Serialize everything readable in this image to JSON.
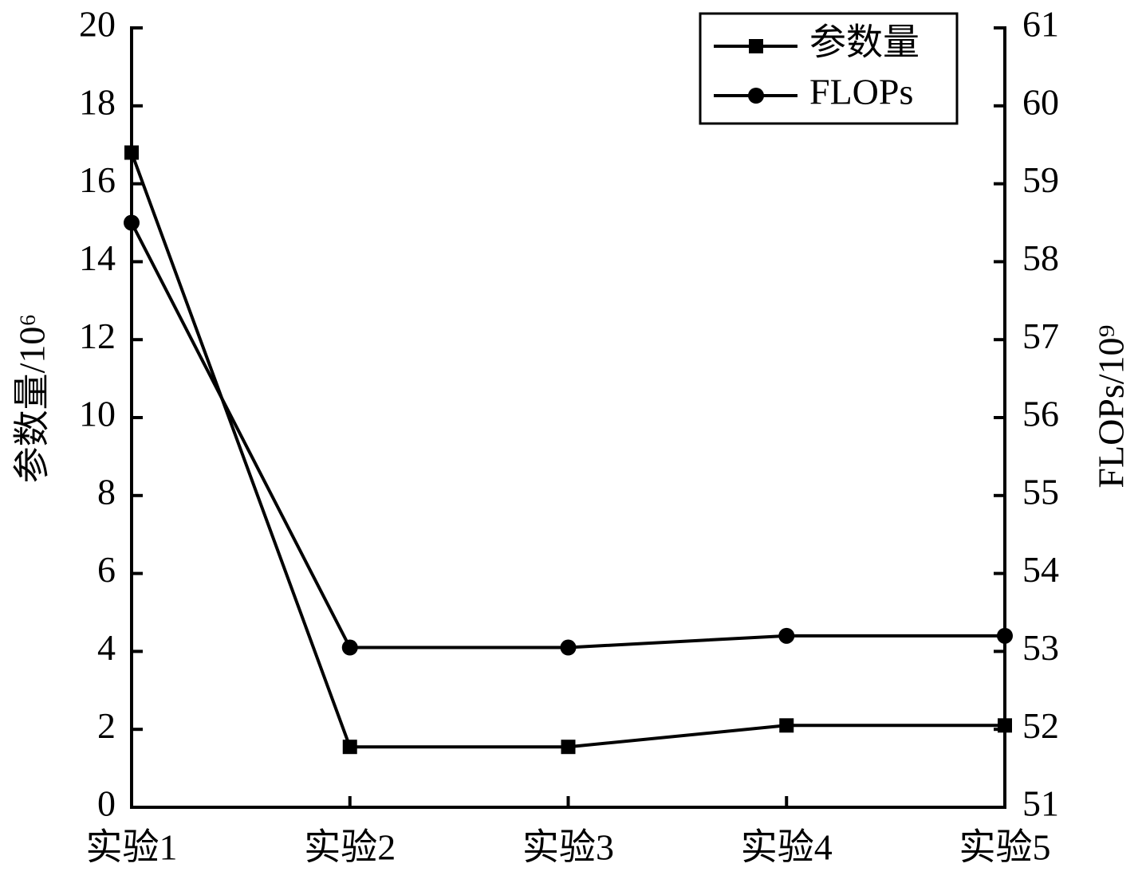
{
  "chart_data": {
    "type": "line",
    "categories": [
      "实验1",
      "实验2",
      "实验3",
      "实验4",
      "实验5"
    ],
    "series": [
      {
        "name": "参数量",
        "color": "#000000",
        "marker": "square",
        "values": [
          16.8,
          1.55,
          1.55,
          2.1,
          2.1
        ]
      },
      {
        "name": "FLOPs",
        "color": "#000000",
        "marker": "circle",
        "axis": "y2",
        "values": [
          58.5,
          53.05,
          53.05,
          53.2,
          53.2
        ]
      }
    ],
    "ylabel": "参数量/10⁶",
    "y2label": "FLOPs/10⁹",
    "ylim": [
      0,
      20
    ],
    "yticks": [
      0,
      2,
      4,
      6,
      8,
      10,
      12,
      14,
      16,
      18,
      20
    ],
    "y2lim": [
      51,
      61
    ],
    "y2ticks": [
      51,
      52,
      53,
      54,
      55,
      56,
      57,
      58,
      59,
      60,
      61
    ],
    "grid": false,
    "legend": "upper right"
  }
}
